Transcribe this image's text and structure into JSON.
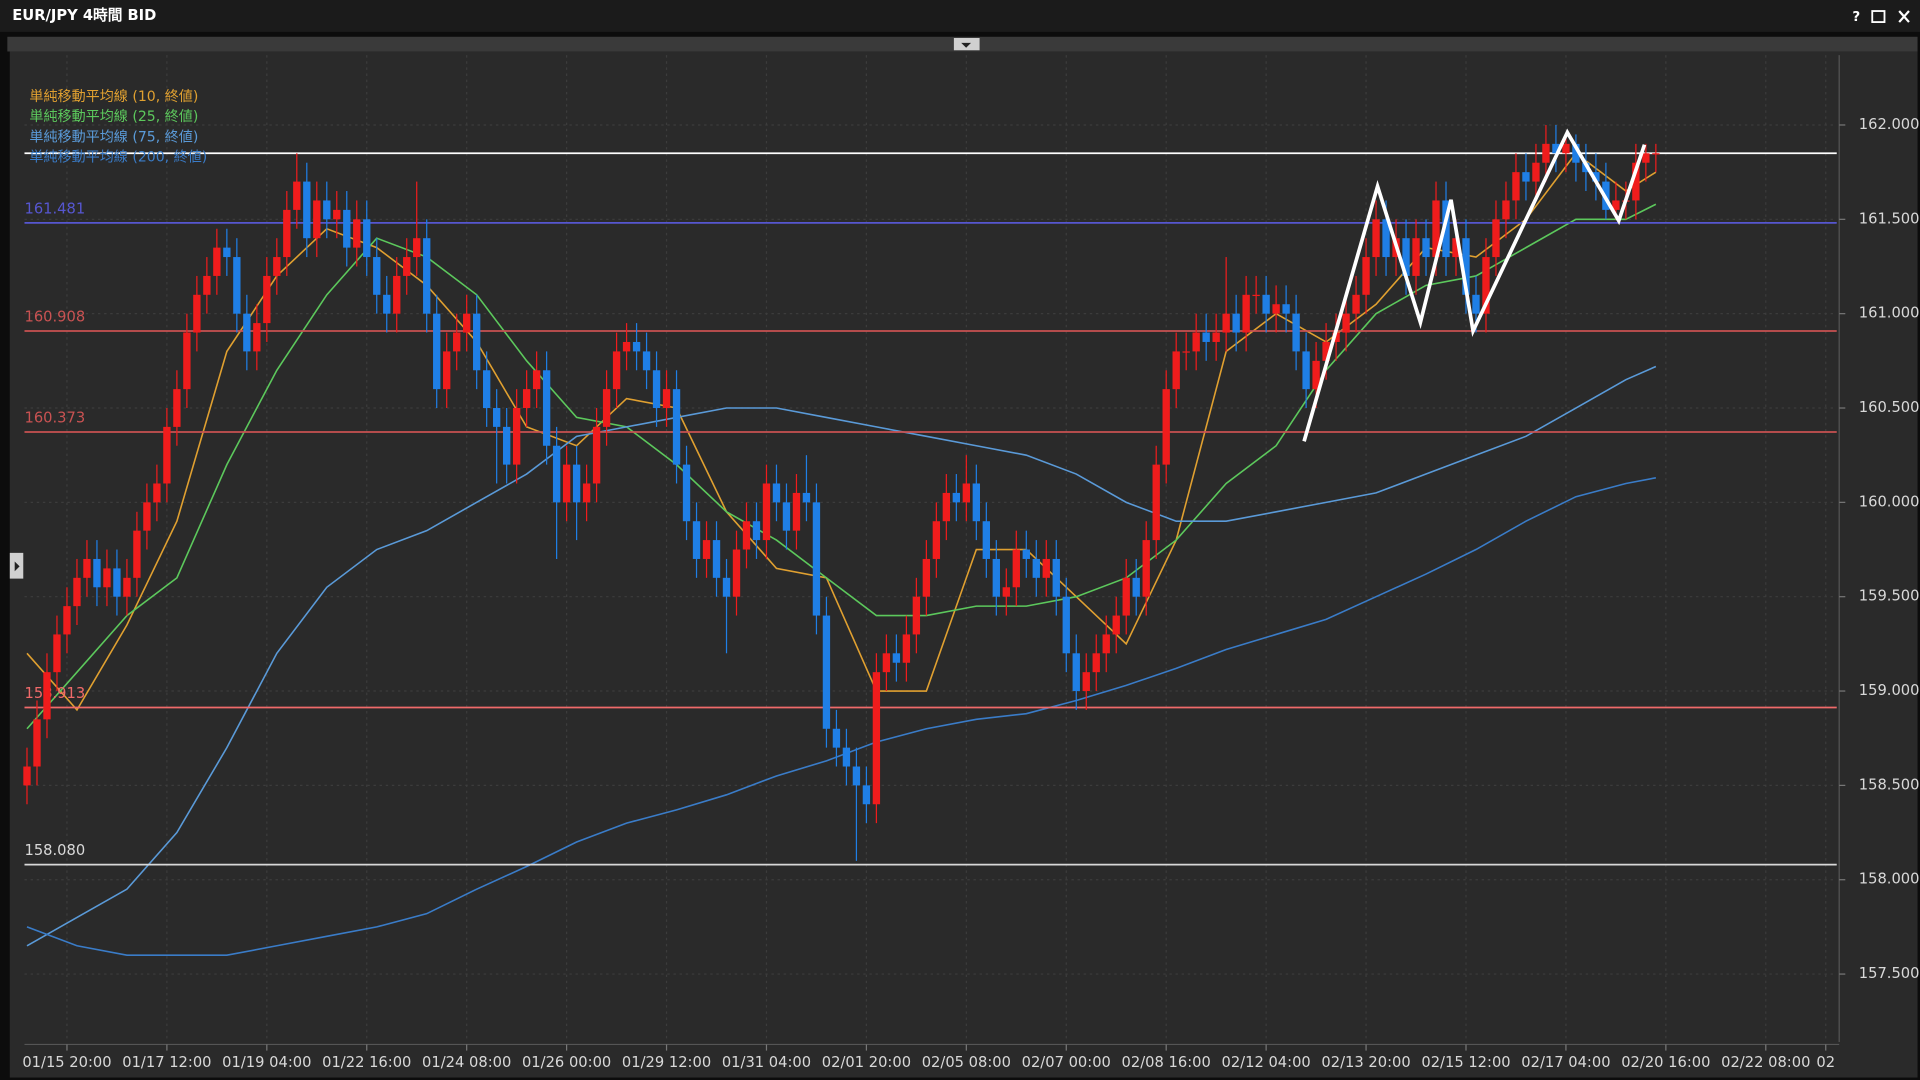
{
  "window": {
    "title": "EUR/JPY 4時間 BID",
    "help": "?"
  },
  "chart_data": {
    "type": "candlestick",
    "up_color": "#f01c1c",
    "down_color": "#1f7fe6",
    "ylim": [
      157.14,
      162.37
    ],
    "yticks": [
      {
        "value": 157.5,
        "label": "157.500"
      },
      {
        "value": 158,
        "label": "158.000"
      },
      {
        "value": 158.5,
        "label": "158.500"
      },
      {
        "value": 159,
        "label": "159.000"
      },
      {
        "value": 159.5,
        "label": "159.500"
      },
      {
        "value": 160,
        "label": "160.000"
      },
      {
        "value": 160.5,
        "label": "160.500"
      },
      {
        "value": 161,
        "label": "161.000"
      },
      {
        "value": 161.5,
        "label": "161.500"
      },
      {
        "value": 162,
        "label": "162.000"
      }
    ],
    "xlim": [
      -0.25,
      181.1
    ],
    "xticks": [
      {
        "value": 4,
        "label": "01/15 20:00"
      },
      {
        "value": 14,
        "label": "01/17 12:00"
      },
      {
        "value": 24,
        "label": "01/19 04:00"
      },
      {
        "value": 34,
        "label": "01/22 16:00"
      },
      {
        "value": 44,
        "label": "01/24 08:00"
      },
      {
        "value": 54,
        "label": "01/26 00:00"
      },
      {
        "value": 64,
        "label": "01/29 12:00"
      },
      {
        "value": 74,
        "label": "01/31 04:00"
      },
      {
        "value": 84,
        "label": "02/01 20:00"
      },
      {
        "value": 94,
        "label": "02/05 08:00"
      },
      {
        "value": 104,
        "label": "02/07 00:00"
      },
      {
        "value": 114,
        "label": "02/08 16:00"
      },
      {
        "value": 124,
        "label": "02/12 04:00"
      },
      {
        "value": 134,
        "label": "02/13 20:00"
      },
      {
        "value": 144,
        "label": "02/15 12:00"
      },
      {
        "value": 154,
        "label": "02/17 04:00"
      },
      {
        "value": 164,
        "label": "02/20 16:00"
      },
      {
        "value": 174,
        "label": "02/22 08:00"
      },
      {
        "value": 180,
        "label": "02"
      }
    ],
    "grid": true,
    "open": [
      158.5,
      158.6,
      158.85,
      159.1,
      159.3,
      159.45,
      159.6,
      159.7,
      159.55,
      159.65,
      159.5,
      159.6,
      159.85,
      160.0,
      160.1,
      160.4,
      160.6,
      160.9,
      161.1,
      161.2,
      161.35,
      161.3,
      161.0,
      160.8,
      160.95,
      161.2,
      161.3,
      161.55,
      161.7,
      161.4,
      161.6,
      161.5,
      161.55,
      161.35,
      161.5,
      161.3,
      161.1,
      161.0,
      161.2,
      161.3,
      161.4,
      161.0,
      160.6,
      160.8,
      160.9,
      161.0,
      160.7,
      160.5,
      160.4,
      160.2,
      160.5,
      160.6,
      160.7,
      160.3,
      160.0,
      160.2,
      160.0,
      160.1,
      160.4,
      160.6,
      160.8,
      160.85,
      160.8,
      160.7,
      160.5,
      160.6,
      160.2,
      159.9,
      159.7,
      159.8,
      159.6,
      159.5,
      159.75,
      159.9,
      159.8,
      160.1,
      160.0,
      159.85,
      160.05,
      160.0,
      159.4,
      158.8,
      158.7,
      158.6,
      158.5,
      158.4,
      159.1,
      159.2,
      159.15,
      159.3,
      159.5,
      159.7,
      159.9,
      160.05,
      160.0,
      160.1,
      159.9,
      159.7,
      159.5,
      159.55,
      159.75,
      159.7,
      159.6,
      159.7,
      159.5,
      159.2,
      159.0,
      159.1,
      159.2,
      159.3,
      159.4,
      159.6,
      159.5,
      159.8,
      160.2,
      160.6,
      160.8,
      160.8,
      160.9,
      160.85,
      160.9,
      161.0,
      160.9,
      161.1,
      161.1,
      161.0,
      161.05,
      161.0,
      160.8,
      160.6,
      160.75,
      160.85,
      160.9,
      161.0,
      161.1,
      161.3,
      161.5,
      161.3,
      161.4,
      161.2,
      161.4,
      161.3,
      161.6,
      161.3,
      161.4,
      161.1,
      161.0,
      161.3,
      161.5,
      161.6,
      161.75,
      161.7,
      161.8,
      161.9,
      161.85,
      161.9,
      161.8,
      161.75,
      161.7,
      161.55,
      161.6,
      161.6,
      161.8,
      161.85
    ],
    "high": [
      158.7,
      158.95,
      159.2,
      159.4,
      159.55,
      159.7,
      159.8,
      159.8,
      159.75,
      159.75,
      159.7,
      159.95,
      160.1,
      160.2,
      160.5,
      160.7,
      161.0,
      161.2,
      161.3,
      161.45,
      161.45,
      161.4,
      161.1,
      161.05,
      161.3,
      161.4,
      161.65,
      161.85,
      161.8,
      161.7,
      161.7,
      161.65,
      161.65,
      161.6,
      161.6,
      161.4,
      161.2,
      161.3,
      161.4,
      161.7,
      161.5,
      161.1,
      160.9,
      161.0,
      161.1,
      161.1,
      160.8,
      160.6,
      160.5,
      160.6,
      160.7,
      160.8,
      160.8,
      160.4,
      160.3,
      160.3,
      160.2,
      160.5,
      160.7,
      160.9,
      160.95,
      160.95,
      160.9,
      160.8,
      160.7,
      160.7,
      160.3,
      160.0,
      159.9,
      159.9,
      159.7,
      159.85,
      160.0,
      160.0,
      160.2,
      160.2,
      160.1,
      160.15,
      160.25,
      160.1,
      159.5,
      158.9,
      158.8,
      158.7,
      158.6,
      159.2,
      159.3,
      159.3,
      159.4,
      159.6,
      159.8,
      160.0,
      160.15,
      160.15,
      160.25,
      160.2,
      160.0,
      159.8,
      159.65,
      159.85,
      159.85,
      159.8,
      159.8,
      159.8,
      159.6,
      159.3,
      159.2,
      159.3,
      159.4,
      159.5,
      159.7,
      159.7,
      159.9,
      160.3,
      160.7,
      160.9,
      160.9,
      161.0,
      161.0,
      161.0,
      161.3,
      161.1,
      161.2,
      161.2,
      161.2,
      161.15,
      161.15,
      161.1,
      160.9,
      160.85,
      160.95,
      161.0,
      161.1,
      161.2,
      161.4,
      161.6,
      161.6,
      161.5,
      161.5,
      161.5,
      161.5,
      161.7,
      161.7,
      161.5,
      161.5,
      161.2,
      161.4,
      161.6,
      161.7,
      161.85,
      161.85,
      161.9,
      162.0,
      162.0,
      161.95,
      161.95,
      161.9,
      161.85,
      161.8,
      161.7,
      161.7,
      161.9,
      161.9,
      161.9
    ],
    "low": [
      158.4,
      158.5,
      158.75,
      159.0,
      159.2,
      159.35,
      159.5,
      159.45,
      159.45,
      159.4,
      159.4,
      159.5,
      159.75,
      159.9,
      160.0,
      160.3,
      160.5,
      160.8,
      161.0,
      161.1,
      161.2,
      160.9,
      160.7,
      160.7,
      160.85,
      161.1,
      161.2,
      161.45,
      161.3,
      161.3,
      161.4,
      161.4,
      161.25,
      161.25,
      161.2,
      161.0,
      160.9,
      160.9,
      161.1,
      161.2,
      160.9,
      160.5,
      160.5,
      160.7,
      160.8,
      160.6,
      160.4,
      160.1,
      160.1,
      160.1,
      160.4,
      160.5,
      160.2,
      159.7,
      159.9,
      159.8,
      159.9,
      160.0,
      160.3,
      160.5,
      160.7,
      160.7,
      160.6,
      160.4,
      160.4,
      160.1,
      159.8,
      159.6,
      159.6,
      159.5,
      159.2,
      159.4,
      159.65,
      159.7,
      159.7,
      159.9,
      159.75,
      159.75,
      159.9,
      159.3,
      158.7,
      158.6,
      158.5,
      158.1,
      158.3,
      158.3,
      159.0,
      159.05,
      159.05,
      159.2,
      159.4,
      159.6,
      159.8,
      159.9,
      159.9,
      159.8,
      159.6,
      159.4,
      159.4,
      159.45,
      159.6,
      159.5,
      159.5,
      159.4,
      159.1,
      158.9,
      158.9,
      159.0,
      159.1,
      159.2,
      159.3,
      159.4,
      159.4,
      159.7,
      160.1,
      160.5,
      160.7,
      160.7,
      160.75,
      160.75,
      160.8,
      160.8,
      160.8,
      161.0,
      160.9,
      160.9,
      160.9,
      160.7,
      160.5,
      160.5,
      160.65,
      160.75,
      160.8,
      160.9,
      161.0,
      161.2,
      161.2,
      161.2,
      161.1,
      161.1,
      161.2,
      161.2,
      161.2,
      161.2,
      161.0,
      160.9,
      160.9,
      161.2,
      161.4,
      161.5,
      161.6,
      161.6,
      161.7,
      161.75,
      161.75,
      161.7,
      161.65,
      161.6,
      161.5,
      161.5,
      161.5,
      161.5,
      161.7,
      161.75
    ],
    "close": [
      158.6,
      158.85,
      159.1,
      159.3,
      159.45,
      159.6,
      159.7,
      159.55,
      159.65,
      159.5,
      159.6,
      159.85,
      160.0,
      160.1,
      160.4,
      160.6,
      160.9,
      161.1,
      161.2,
      161.35,
      161.3,
      161.0,
      160.8,
      160.95,
      161.2,
      161.3,
      161.55,
      161.7,
      161.4,
      161.6,
      161.5,
      161.55,
      161.35,
      161.5,
      161.3,
      161.1,
      161.0,
      161.2,
      161.3,
      161.4,
      161.0,
      160.6,
      160.8,
      160.9,
      161.0,
      160.7,
      160.5,
      160.4,
      160.2,
      160.5,
      160.6,
      160.7,
      160.3,
      160.0,
      160.2,
      160.0,
      160.1,
      160.4,
      160.6,
      160.8,
      160.85,
      160.8,
      160.7,
      160.5,
      160.6,
      160.2,
      159.9,
      159.7,
      159.8,
      159.6,
      159.5,
      159.75,
      159.9,
      159.8,
      160.1,
      160.0,
      159.85,
      160.05,
      160.0,
      159.4,
      158.8,
      158.7,
      158.6,
      158.5,
      158.4,
      159.1,
      159.2,
      159.15,
      159.3,
      159.5,
      159.7,
      159.9,
      160.05,
      160.0,
      160.1,
      159.9,
      159.7,
      159.5,
      159.55,
      159.75,
      159.7,
      159.6,
      159.7,
      159.5,
      159.2,
      159.0,
      159.1,
      159.2,
      159.3,
      159.4,
      159.6,
      159.5,
      159.8,
      160.2,
      160.6,
      160.8,
      160.8,
      160.9,
      160.85,
      160.9,
      161.0,
      160.9,
      161.1,
      161.1,
      161.0,
      161.05,
      161.0,
      160.8,
      160.6,
      160.75,
      160.85,
      160.9,
      161.0,
      161.1,
      161.3,
      161.5,
      161.3,
      161.4,
      161.2,
      161.4,
      161.3,
      161.6,
      161.3,
      161.4,
      161.1,
      161.0,
      161.3,
      161.5,
      161.6,
      161.75,
      161.7,
      161.8,
      161.9,
      161.85,
      161.9,
      161.8,
      161.75,
      161.7,
      161.55,
      161.6,
      161.6,
      161.8,
      161.85,
      161.85
    ],
    "series": [
      {
        "name": "単純移動平均線 (10, 終値)",
        "color": "#e0a030",
        "x": [
          0,
          5,
          10,
          15,
          20,
          25,
          30,
          35,
          40,
          45,
          50,
          55,
          60,
          65,
          70,
          75,
          80,
          85,
          90,
          95,
          100,
          105,
          110,
          115,
          120,
          125,
          130,
          135,
          140,
          145,
          150,
          155,
          160,
          163
        ],
        "values": [
          159.2,
          158.9,
          159.35,
          159.9,
          160.8,
          161.2,
          161.45,
          161.35,
          161.15,
          160.85,
          160.4,
          160.3,
          160.55,
          160.5,
          159.95,
          159.65,
          159.6,
          159.0,
          159.0,
          159.75,
          159.75,
          159.5,
          159.25,
          159.8,
          160.8,
          161.0,
          160.85,
          161.05,
          161.35,
          161.3,
          161.5,
          161.85,
          161.65,
          161.75
        ]
      },
      {
        "name": "単純移動平均線 (25, 終値)",
        "color": "#5cc85c",
        "x": [
          0,
          5,
          10,
          15,
          20,
          25,
          30,
          35,
          40,
          45,
          50,
          55,
          60,
          65,
          70,
          75,
          80,
          85,
          90,
          95,
          100,
          105,
          110,
          115,
          120,
          125,
          130,
          135,
          140,
          145,
          150,
          155,
          160,
          163
        ],
        "values": [
          158.8,
          159.1,
          159.4,
          159.6,
          160.2,
          160.7,
          161.1,
          161.4,
          161.3,
          161.1,
          160.75,
          160.45,
          160.4,
          160.2,
          159.95,
          159.8,
          159.6,
          159.4,
          159.4,
          159.45,
          159.45,
          159.5,
          159.6,
          159.8,
          160.1,
          160.3,
          160.7,
          161.0,
          161.15,
          161.2,
          161.35,
          161.5,
          161.5,
          161.58
        ]
      },
      {
        "name": "単純移動平均線 (75, 終値)",
        "color": "#5a9ad8",
        "x": [
          0,
          5,
          10,
          15,
          20,
          25,
          30,
          35,
          40,
          45,
          50,
          55,
          60,
          65,
          70,
          75,
          80,
          85,
          90,
          95,
          100,
          105,
          110,
          115,
          120,
          125,
          130,
          135,
          140,
          145,
          150,
          155,
          160,
          163
        ],
        "values": [
          157.65,
          157.8,
          157.95,
          158.25,
          158.7,
          159.2,
          159.55,
          159.75,
          159.85,
          160.0,
          160.15,
          160.35,
          160.4,
          160.45,
          160.5,
          160.5,
          160.45,
          160.4,
          160.35,
          160.3,
          160.25,
          160.15,
          160.0,
          159.9,
          159.9,
          159.95,
          160.0,
          160.05,
          160.15,
          160.25,
          160.35,
          160.5,
          160.65,
          160.72
        ]
      },
      {
        "name": "単純移動平均線 (200, 終値)",
        "color": "#3a7cc8",
        "x": [
          0,
          5,
          10,
          15,
          20,
          25,
          30,
          35,
          40,
          45,
          50,
          55,
          60,
          65,
          70,
          75,
          80,
          85,
          90,
          95,
          100,
          105,
          110,
          115,
          120,
          125,
          130,
          135,
          140,
          145,
          150,
          155,
          160,
          163
        ],
        "values": [
          157.75,
          157.65,
          157.6,
          157.6,
          157.6,
          157.65,
          157.7,
          157.75,
          157.82,
          157.95,
          158.07,
          158.2,
          158.3,
          158.37,
          158.45,
          158.55,
          158.63,
          158.73,
          158.8,
          158.85,
          158.88,
          158.95,
          159.03,
          159.12,
          159.22,
          159.3,
          159.38,
          159.5,
          159.62,
          159.75,
          159.9,
          160.03,
          160.1,
          160.13
        ]
      }
    ],
    "levels": [
      {
        "value": 161.85,
        "color": "#ffffff"
      },
      {
        "value": 161.481,
        "label": "161.481",
        "color": "#5656d0"
      },
      {
        "value": 160.908,
        "label": "160.908",
        "color": "#c85252"
      },
      {
        "value": 160.373,
        "label": "160.373",
        "color": "#c85252"
      },
      {
        "value": 158.913,
        "label": "158.913",
        "color": "#f06a6a"
      },
      {
        "value": 158.08,
        "label": "158.080",
        "color": "#d8d8d8"
      }
    ]
  }
}
